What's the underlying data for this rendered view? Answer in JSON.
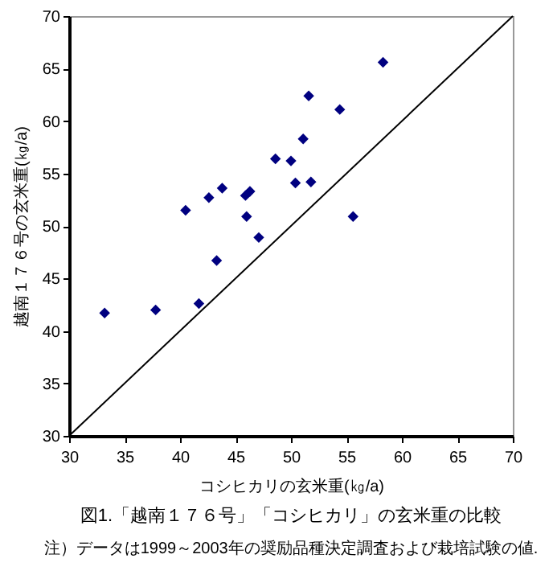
{
  "chart_data": {
    "type": "scatter",
    "title": "図1.「越南１７６号」「コシヒカリ」の玄米重の比較",
    "xlabel": "コシヒカリの玄米重(㎏/a)",
    "ylabel": "越南１７６号の玄米重(㎏/a)",
    "annotations": [
      "注）データは1999～2003年の奨励品種決定調査および栽培試験の値."
    ],
    "xlim": [
      30,
      70
    ],
    "ylim": [
      30,
      70
    ],
    "xticks": [
      30,
      35,
      40,
      45,
      50,
      55,
      60,
      65,
      70
    ],
    "yticks": [
      30,
      35,
      40,
      45,
      50,
      55,
      60,
      65,
      70
    ],
    "grid": false,
    "series": [
      {
        "type": "scatter",
        "marker": "diamond",
        "color": "#000080",
        "x": [
          33.2,
          37.8,
          41.7,
          40.5,
          42.6,
          43.8,
          43.3,
          45.9,
          46.3,
          46.0,
          47.1,
          48.6,
          50.0,
          50.4,
          51.8,
          51.1,
          51.6,
          54.4,
          55.6,
          58.3
        ],
        "values": [
          41.7,
          42.0,
          42.6,
          51.5,
          52.7,
          53.6,
          46.7,
          52.9,
          53.3,
          50.9,
          48.9,
          56.4,
          56.2,
          54.1,
          54.2,
          58.3,
          62.4,
          61.1,
          50.9,
          65.6
        ]
      },
      {
        "type": "line",
        "color": "#000000",
        "line_style": "solid",
        "x": [
          30,
          70
        ],
        "values": [
          30,
          70
        ]
      }
    ]
  }
}
